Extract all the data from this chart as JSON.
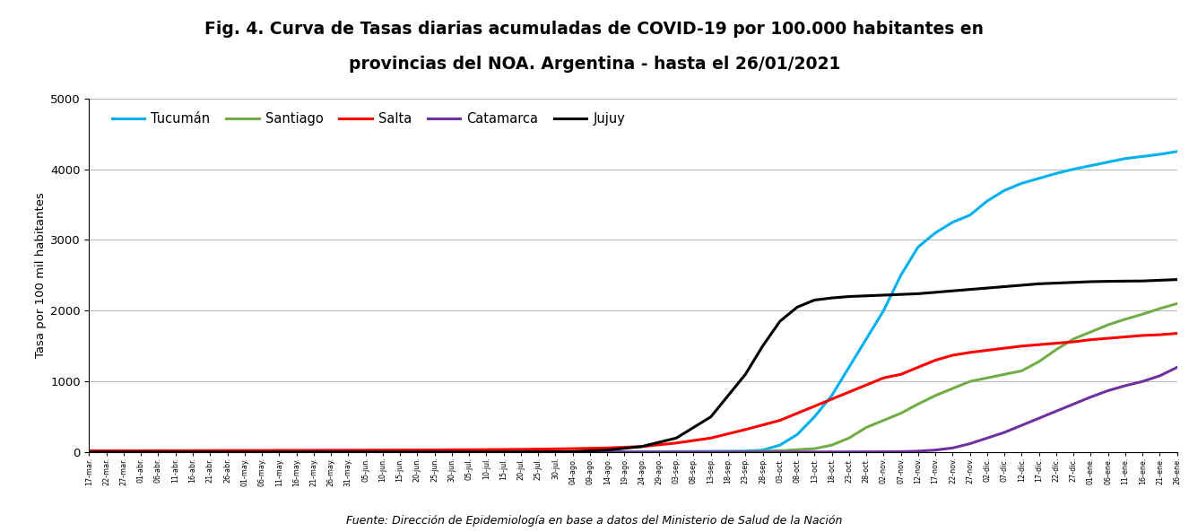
{
  "title_line1": "Fig. 4. Curva de Tasas diarias acumuladas de COVID-19 por 100.000 habitantes en",
  "title_line2": "provincias del NOA. Argentina - hasta el 26/01/2021",
  "ylabel": "Tasa por 100 mil habitantes",
  "footer": "Fuente: Dirección de Epidemiología en base a datos del Ministerio de Salud de la Nación",
  "title_bg": "#cce4f0",
  "plot_bg": "#ffffff",
  "outer_bg": "#f0f0f0",
  "ylim": [
    0,
    5000
  ],
  "yticks": [
    0,
    1000,
    2000,
    3000,
    4000,
    5000
  ],
  "series_colors": {
    "Tucumán": "#00b0f0",
    "Santiago": "#70ad47",
    "Salta": "#ff0000",
    "Catamarca": "#7030a0",
    "Jujuy": "#000000"
  },
  "x_labels": [
    "17-mar.",
    "22-mar.",
    "27-mar.",
    "01-abr.",
    "06-abr.",
    "11-abr.",
    "16-abr.",
    "21-abr.",
    "26-abr.",
    "01-may.",
    "06-may.",
    "11-may.",
    "16-may.",
    "21-may.",
    "26-may.",
    "31-may.",
    "05-jun.",
    "10-jun.",
    "15-jun.",
    "20-jun.",
    "25-jun.",
    "30-jun.",
    "05-jul.",
    "10-jul.",
    "15-jul.",
    "20-jul.",
    "25-jul.",
    "30-jul.",
    "04-ago.",
    "09-ago.",
    "14-ago.",
    "19-ago.",
    "24-ago.",
    "29-ago.",
    "03-sep.",
    "08-sep.",
    "13-sep.",
    "18-sep.",
    "23-sep.",
    "28-sep.",
    "03-oct.",
    "08-oct.",
    "13-oct.",
    "18-oct.",
    "23-oct.",
    "28-oct.",
    "02-nov.",
    "07-nov.",
    "12-nov.",
    "17-nov.",
    "22-nov.",
    "27-nov.",
    "02-dic.",
    "07-dic.",
    "12-dic.",
    "17-dic.",
    "22-dic.",
    "27-dic.",
    "01-ene.",
    "06-ene.",
    "11-ene.",
    "16-ene.",
    "21-ene.",
    "26-ene."
  ]
}
